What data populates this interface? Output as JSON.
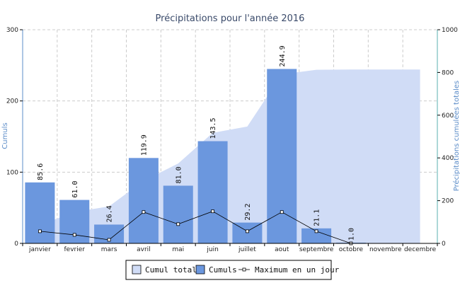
{
  "chart_data": {
    "type": "bar",
    "title": "Précipitations pour l'année 2016",
    "categories": [
      "janvier",
      "fevrier",
      "mars",
      "avril",
      "mai",
      "juin",
      "juillet",
      "aout",
      "septembre",
      "octobre",
      "novembre",
      "decembre"
    ],
    "series": [
      {
        "name": "Cumul total",
        "type": "area",
        "axis": "right",
        "color": "#d0dcf6",
        "values": [
          85.6,
          146.6,
          173.0,
          292.9,
          373.9,
          517.4,
          546.6,
          791.5,
          812.6,
          813.6,
          813.6,
          813.6
        ]
      },
      {
        "name": "Cumuls",
        "type": "bar",
        "axis": "left",
        "color": "#6b97de",
        "values": [
          85.6,
          61.0,
          26.4,
          119.9,
          81.0,
          143.5,
          29.2,
          244.9,
          21.1,
          1.0,
          null,
          null
        ],
        "labels": [
          "85.6",
          "61.0",
          "26.4",
          "119.9",
          "81.0",
          "143.5",
          "29.2",
          "244.9",
          "21.1",
          "1.0",
          "",
          ""
        ]
      },
      {
        "name": "Maximum en un jour",
        "type": "line",
        "axis": "left",
        "color": "#000000",
        "values": [
          17,
          12,
          5,
          44,
          27,
          45,
          17,
          44,
          17,
          0,
          null,
          null
        ]
      }
    ],
    "ylabel": "Cumuls",
    "ylim": [
      0,
      300
    ],
    "yticks": [
      0,
      100,
      200,
      300
    ],
    "y2label": "Précipitations cumulées totales",
    "y2lim": [
      0,
      1000
    ],
    "y2ticks": [
      0,
      200,
      400,
      600,
      800,
      1000
    ],
    "grid": true,
    "legend_position": "bottom"
  }
}
